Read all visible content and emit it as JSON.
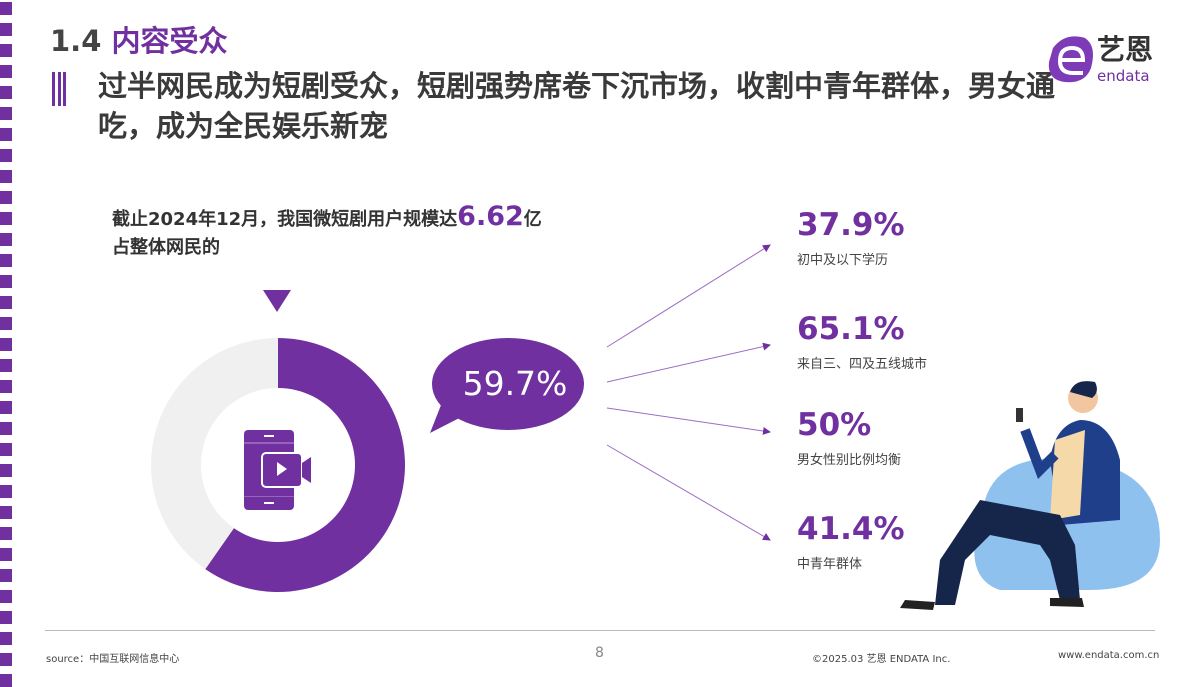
{
  "section": {
    "number": "1.4",
    "title": "内容受众"
  },
  "headline": "过半网民成为短剧受众，短剧强势席卷下沉市场，收割中青年群体，男女通吃，成为全民娱乐新宠",
  "logo": {
    "cn": "艺恩",
    "en": "endata"
  },
  "intro": {
    "prefix": "截止2024年12月，我国微短剧用户规模达",
    "highlight": "6.62",
    "suffix": "亿",
    "line2": "占整体网民的"
  },
  "chart_data": {
    "type": "pie",
    "variant": "donut",
    "values": [
      59.7,
      40.3
    ],
    "label": "59.7%",
    "colors": [
      "#7030a0",
      "#f0f0f0"
    ]
  },
  "stats": [
    {
      "value": "37.9%",
      "label": "初中及以下学历"
    },
    {
      "value": "65.1%",
      "label": "来自三、四及五线城市"
    },
    {
      "value": "50%",
      "label": "男女性别比例均衡"
    },
    {
      "value": "41.4%",
      "label": "中青年群体"
    }
  ],
  "footer": {
    "source": "source：中国互联网信息中心",
    "page": "8",
    "copyright": "©2025.03 艺恩 ENDATA Inc.",
    "url": "www.endata.com.cn"
  },
  "colors": {
    "accent": "#7030a0"
  }
}
